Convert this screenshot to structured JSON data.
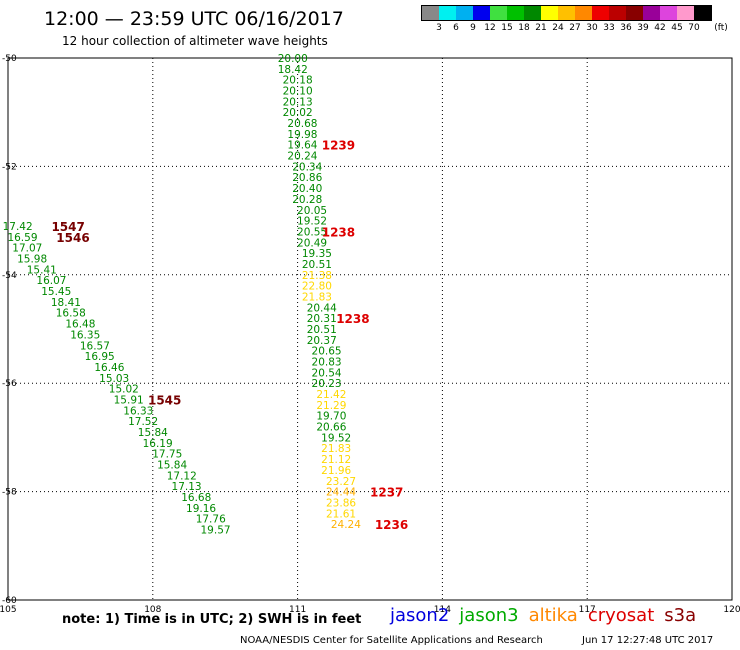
{
  "header": {
    "title": "12:00 — 23:59 UTC 06/16/2017",
    "subtitle": "12 hour collection of altimeter wave heights"
  },
  "color_scale": {
    "unit_label": "(ft)",
    "colors": [
      "#888888",
      "#00f0f0",
      "#00b0f0",
      "#0000ee",
      "#40e040",
      "#00c000",
      "#008800",
      "#ffff00",
      "#ffc000",
      "#ff8800",
      "#ee0000",
      "#bb0000",
      "#880000",
      "#990099",
      "#dd44dd",
      "#ff99cc",
      "#000000"
    ],
    "ticks": [
      "3",
      "6",
      "9",
      "12",
      "15",
      "18",
      "21",
      "24",
      "27",
      "30",
      "33",
      "36",
      "39",
      "42",
      "45",
      "70"
    ]
  },
  "axes": {
    "x_ticks": [
      "105",
      "108",
      "111",
      "114",
      "117",
      "120"
    ],
    "y_ticks": [
      "-50",
      "-52",
      "-54",
      "-56",
      "-58",
      "-60"
    ],
    "x_min": 105,
    "x_max": 120,
    "y_min": -60,
    "y_max": -50
  },
  "tracks": [
    {
      "name": "track-111",
      "values": [
        [
          110.9,
          -50.0,
          "20.00",
          "#008800"
        ],
        [
          110.9,
          -50.2,
          "18.42",
          "#008800"
        ],
        [
          111.0,
          -50.4,
          "20.18",
          "#008800"
        ],
        [
          111.0,
          -50.6,
          "20.10",
          "#008800"
        ],
        [
          111.0,
          -50.8,
          "20.13",
          "#008800"
        ],
        [
          111.0,
          -51.0,
          "20.02",
          "#008800"
        ],
        [
          111.1,
          -51.2,
          "20.68",
          "#008800"
        ],
        [
          111.1,
          -51.4,
          "19.98",
          "#008800"
        ],
        [
          111.1,
          -51.6,
          "19.64",
          "#008800"
        ],
        [
          111.1,
          -51.8,
          "20.24",
          "#008800"
        ],
        [
          111.2,
          -52.0,
          "20.34",
          "#008800"
        ],
        [
          111.2,
          -52.2,
          "20.86",
          "#008800"
        ],
        [
          111.2,
          -52.4,
          "20.40",
          "#008800"
        ],
        [
          111.2,
          -52.6,
          "20.28",
          "#008800"
        ],
        [
          111.3,
          -52.8,
          "20.05",
          "#008800"
        ],
        [
          111.3,
          -53.0,
          "19.52",
          "#008800"
        ],
        [
          111.3,
          -53.2,
          "20.55",
          "#008800"
        ],
        [
          111.3,
          -53.4,
          "20.49",
          "#008800"
        ],
        [
          111.4,
          -53.6,
          "19.35",
          "#008800"
        ],
        [
          111.4,
          -53.8,
          "20.51",
          "#008800"
        ],
        [
          111.4,
          -54.0,
          "21.38",
          "#ffd700"
        ],
        [
          111.4,
          -54.2,
          "22.80",
          "#ffd700"
        ],
        [
          111.4,
          -54.4,
          "21.83",
          "#ffd700"
        ],
        [
          111.5,
          -54.6,
          "20.44",
          "#008800"
        ],
        [
          111.5,
          -54.8,
          "20.31",
          "#008800"
        ],
        [
          111.5,
          -55.0,
          "20.51",
          "#008800"
        ],
        [
          111.5,
          -55.2,
          "20.37",
          "#008800"
        ],
        [
          111.6,
          -55.4,
          "20.65",
          "#008800"
        ],
        [
          111.6,
          -55.6,
          "20.83",
          "#008800"
        ],
        [
          111.6,
          -55.8,
          "20.54",
          "#008800"
        ],
        [
          111.6,
          -56.0,
          "20.23",
          "#008800"
        ],
        [
          111.7,
          -56.2,
          "21.42",
          "#ffd700"
        ],
        [
          111.7,
          -56.4,
          "21.29",
          "#ffd700"
        ],
        [
          111.7,
          -56.6,
          "19.70",
          "#008800"
        ],
        [
          111.7,
          -56.8,
          "20.66",
          "#008800"
        ],
        [
          111.8,
          -57.0,
          "19.52",
          "#008800"
        ],
        [
          111.8,
          -57.2,
          "21.83",
          "#ffd700"
        ],
        [
          111.8,
          -57.4,
          "21.12",
          "#ffd700"
        ],
        [
          111.8,
          -57.6,
          "21.96",
          "#ffd700"
        ],
        [
          111.9,
          -57.8,
          "23.27",
          "#ffd700"
        ],
        [
          111.9,
          -58.0,
          "24.44",
          "#ffb000"
        ],
        [
          111.9,
          -58.2,
          "23.86",
          "#ffd700"
        ],
        [
          111.9,
          -58.4,
          "21.61",
          "#ffd700"
        ],
        [
          112.0,
          -58.6,
          "24.24",
          "#ffb000"
        ]
      ]
    },
    {
      "name": "track-105",
      "values": [
        [
          105.2,
          -53.1,
          "17.42",
          "#008800"
        ],
        [
          105.3,
          -53.3,
          "16.59",
          "#008800"
        ],
        [
          105.4,
          -53.5,
          "17.07",
          "#008800"
        ],
        [
          105.5,
          -53.7,
          "15.98",
          "#008800"
        ],
        [
          105.7,
          -53.9,
          "15.41",
          "#008800"
        ],
        [
          105.9,
          -54.1,
          "16.07",
          "#008800"
        ],
        [
          106.0,
          -54.3,
          "15.45",
          "#008800"
        ],
        [
          106.2,
          -54.5,
          "18.41",
          "#008800"
        ],
        [
          106.3,
          -54.7,
          "16.58",
          "#008800"
        ],
        [
          106.5,
          -54.9,
          "16.48",
          "#008800"
        ],
        [
          106.6,
          -55.1,
          "16.35",
          "#008800"
        ],
        [
          106.8,
          -55.3,
          "16.57",
          "#008800"
        ],
        [
          106.9,
          -55.5,
          "16.95",
          "#008800"
        ],
        [
          107.1,
          -55.7,
          "16.46",
          "#008800"
        ],
        [
          107.2,
          -55.9,
          "15.03",
          "#008800"
        ],
        [
          107.4,
          -56.1,
          "15.02",
          "#008800"
        ],
        [
          107.5,
          -56.3,
          "15.91",
          "#008800"
        ],
        [
          107.7,
          -56.5,
          "16.33",
          "#008800"
        ],
        [
          107.8,
          -56.7,
          "17.52",
          "#008800"
        ],
        [
          108.0,
          -56.9,
          "15.84",
          "#008800"
        ],
        [
          108.1,
          -57.1,
          "16.19",
          "#008800"
        ],
        [
          108.3,
          -57.3,
          "17.75",
          "#008800"
        ],
        [
          108.4,
          -57.5,
          "15.84",
          "#008800"
        ],
        [
          108.6,
          -57.7,
          "17.12",
          "#008800"
        ],
        [
          108.7,
          -57.9,
          "17.13",
          "#008800"
        ],
        [
          108.9,
          -58.1,
          "16.68",
          "#008800"
        ],
        [
          109.0,
          -58.3,
          "19.16",
          "#008800"
        ],
        [
          109.2,
          -58.5,
          "17.76",
          "#008800"
        ],
        [
          109.3,
          -58.7,
          "19.57",
          "#008800"
        ]
      ]
    }
  ],
  "time_labels": [
    [
      111.5,
      -51.6,
      "1239",
      "#dd0000"
    ],
    [
      111.5,
      -53.2,
      "1238",
      "#dd0000"
    ],
    [
      111.8,
      -54.8,
      "1238",
      "#dd0000"
    ],
    [
      112.5,
      -58.0,
      "1237",
      "#dd0000"
    ],
    [
      112.6,
      -58.6,
      "1236",
      "#dd0000"
    ],
    [
      105.9,
      -53.1,
      "1547",
      "#770000"
    ],
    [
      106.0,
      -53.3,
      "1546",
      "#770000"
    ],
    [
      107.9,
      -56.3,
      "1545",
      "#770000"
    ]
  ],
  "satellites": [
    {
      "name": "jason2",
      "color": "#0000dd"
    },
    {
      "name": "jason3",
      "color": "#00aa00"
    },
    {
      "name": "altika",
      "color": "#ff8800"
    },
    {
      "name": "cryosat",
      "color": "#dd0000"
    },
    {
      "name": "s3a",
      "color": "#880000"
    }
  ],
  "footer": {
    "note": "note:  1) Time is in UTC;  2) SWH is in feet",
    "credit": "NOAA/NESDIS Center for Satellite Applications and Research",
    "timestamp": "Jun 17 12:27:48 UTC 2017"
  }
}
